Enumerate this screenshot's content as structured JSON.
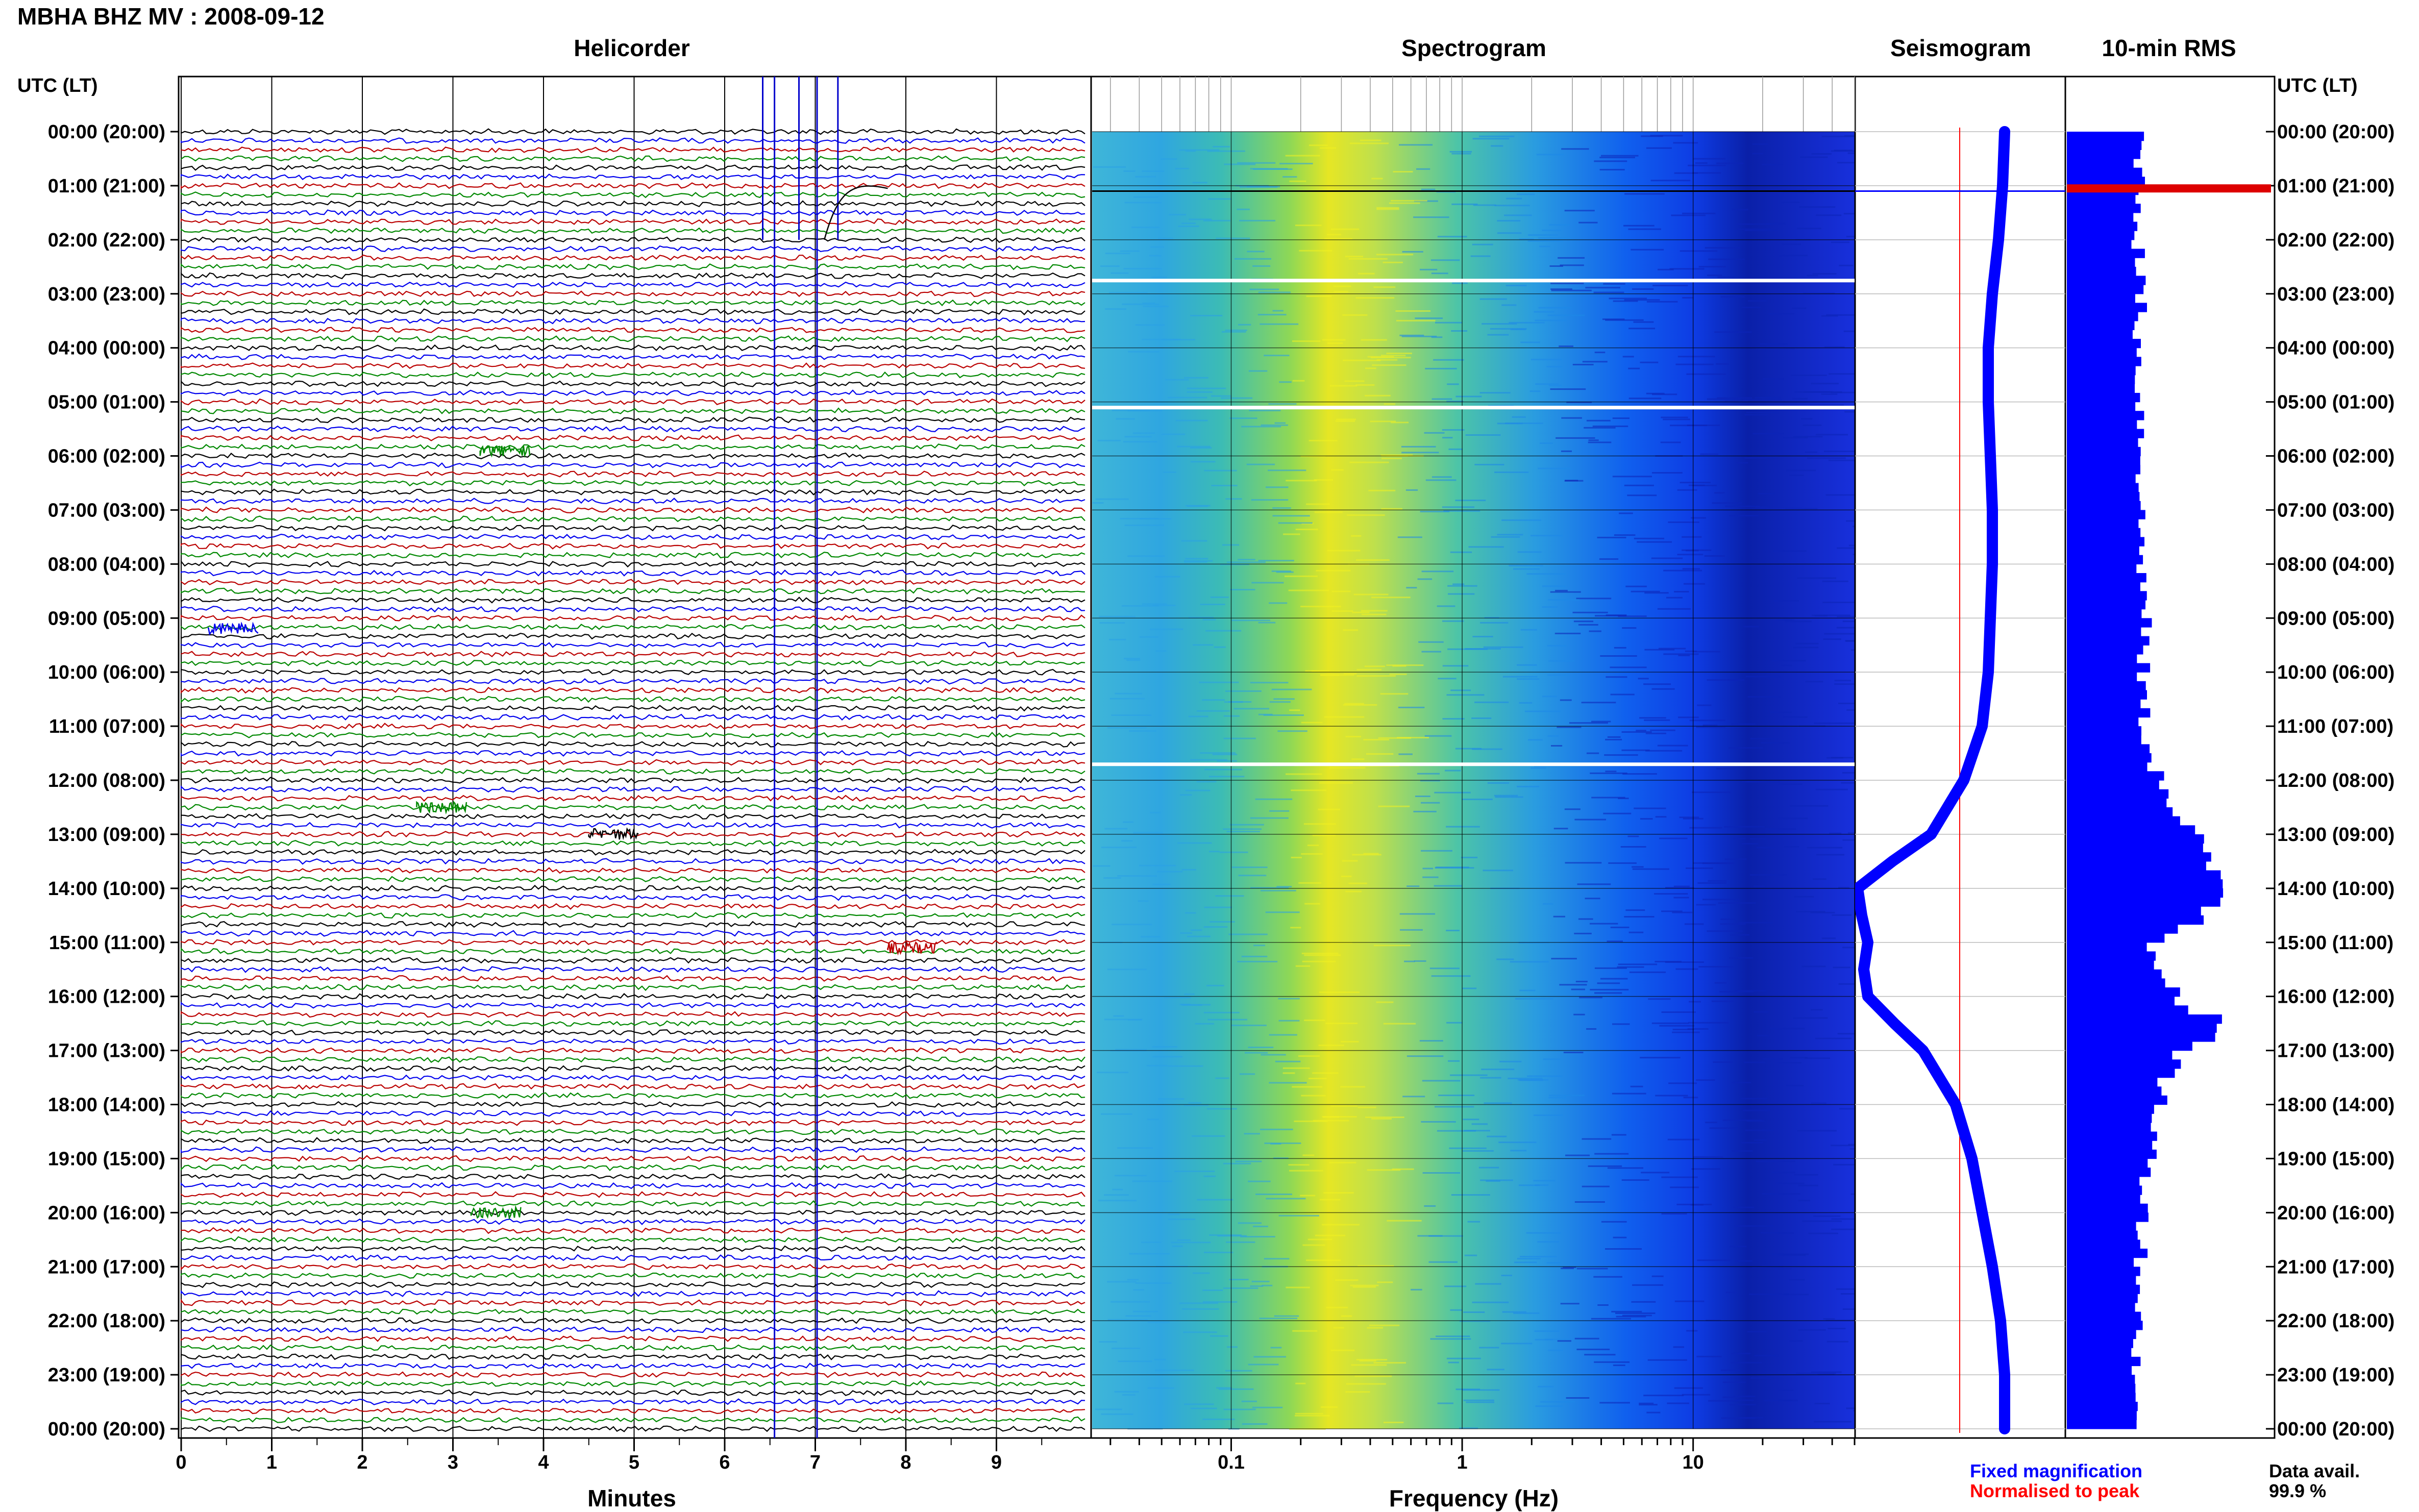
{
  "header": {
    "title": "MBHA BHZ MV : 2008-09-12"
  },
  "panels": {
    "helicorder": "Helicorder",
    "spectrogram": "Spectrogram",
    "seismogram": "Seismogram",
    "rms": "10-min RMS"
  },
  "axis_labels": {
    "left_time": "UTC (LT)",
    "right_time": "UTC (LT)",
    "minutes": "Minutes",
    "frequency": "Frequency (Hz)"
  },
  "legend": {
    "fixed": "Fixed magnification",
    "normalised": "Normalised to peak",
    "fixed_color": "#0000ff",
    "normalised_color": "#ff0000"
  },
  "availability": {
    "label": "Data avail.",
    "value": "99.9 %"
  },
  "colors": {
    "trace_cycle": [
      "#000000",
      "#0000ee",
      "#bb0000",
      "#008800"
    ],
    "rms_fill": "#0000ff",
    "rms_peak": "#dd0000"
  },
  "chart_data": [
    {
      "type": "line",
      "name": "helicorder",
      "title": "Helicorder",
      "xlabel": "Minutes",
      "ylabel": "UTC (LT)",
      "x_ticks": [
        "0",
        "1",
        "2",
        "3",
        "4",
        "5",
        "6",
        "7",
        "8",
        "9"
      ],
      "xlim": [
        0,
        10
      ],
      "y_ticks": [
        "00:00 (20:00)",
        "01:00 (21:00)",
        "02:00 (22:00)",
        "03:00 (23:00)",
        "04:00 (00:00)",
        "05:00 (01:00)",
        "06:00 (02:00)",
        "07:00 (03:00)",
        "08:00 (04:00)",
        "09:00 (05:00)",
        "10:00 (06:00)",
        "11:00 (07:00)",
        "12:00 (08:00)",
        "13:00 (09:00)",
        "14:00 (10:00)",
        "15:00 (11:00)",
        "16:00 (12:00)",
        "17:00 (13:00)",
        "18:00 (14:00)",
        "19:00 (15:00)",
        "20:00 (16:00)",
        "21:00 (17:00)",
        "22:00 (18:00)",
        "23:00 (19:00)",
        "00:00 (20:00)"
      ],
      "rows": 144,
      "event": {
        "row": 6,
        "minute_start": 6.4,
        "minute_end": 7.3
      }
    },
    {
      "type": "heatmap",
      "name": "spectrogram",
      "title": "Spectrogram",
      "xlabel": "Frequency (Hz)",
      "x_scale": "log",
      "xlim": [
        0.025,
        50
      ],
      "x_ticks": [
        {
          "value": 0.1,
          "label": "0.1"
        },
        {
          "value": 1,
          "label": "1"
        },
        {
          "value": 10,
          "label": "10"
        }
      ],
      "peak_band_hz": [
        0.2,
        0.35
      ],
      "gaps_utc_hours": [
        2.75,
        5.1,
        11.7
      ]
    },
    {
      "type": "line",
      "name": "seismogram",
      "title": "Seismogram",
      "series": [
        {
          "name": "Fixed magnification",
          "color": "#0000ff",
          "x": [
            0,
            1,
            2,
            3,
            4,
            5,
            6,
            7,
            8,
            9,
            10,
            11,
            12,
            12.5,
            13,
            13.5,
            14,
            14.5,
            15,
            15.5,
            16,
            16.5,
            17,
            18,
            19,
            20,
            21,
            22,
            23,
            24
          ],
          "y": [
            0.72,
            0.71,
            0.69,
            0.66,
            0.64,
            0.64,
            0.65,
            0.66,
            0.66,
            0.65,
            0.64,
            0.61,
            0.52,
            0.44,
            0.36,
            0.17,
            0.0,
            0.02,
            0.05,
            0.03,
            0.05,
            0.18,
            0.32,
            0.48,
            0.56,
            0.61,
            0.66,
            0.7,
            0.72,
            0.72
          ]
        },
        {
          "name": "Normalised to peak",
          "color": "#ff0000",
          "constant": 0.5
        }
      ]
    },
    {
      "type": "bar",
      "name": "rms",
      "title": "10-min RMS",
      "orientation": "horizontal",
      "x_hours": [
        0,
        1,
        2,
        3,
        4,
        5,
        6,
        7,
        8,
        9,
        10,
        11,
        12,
        12.5,
        13,
        13.5,
        14,
        14.5,
        15,
        15.5,
        16,
        16.5,
        17,
        18,
        19,
        20,
        21,
        22,
        23,
        24
      ],
      "values": [
        0.36,
        0.36,
        0.35,
        0.36,
        0.35,
        0.36,
        0.37,
        0.36,
        0.37,
        0.38,
        0.37,
        0.38,
        0.46,
        0.52,
        0.62,
        0.7,
        0.8,
        0.66,
        0.42,
        0.48,
        0.58,
        0.75,
        0.52,
        0.45,
        0.4,
        0.38,
        0.36,
        0.35,
        0.34,
        0.32
      ],
      "peak_hour": 1.05
    }
  ]
}
